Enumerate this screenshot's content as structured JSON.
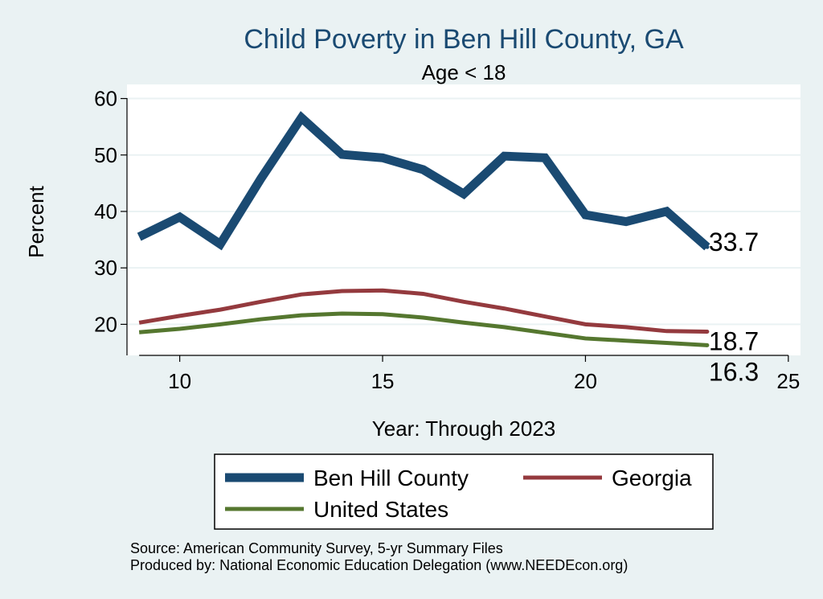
{
  "chart_data": {
    "type": "line",
    "title": "Child Poverty in Ben Hill County, GA",
    "subtitle": "Age < 18",
    "xlabel": "Year: Through 2023",
    "ylabel": "Percent",
    "xlim": [
      8.7,
      25.3
    ],
    "ylim": [
      14.5,
      62.5
    ],
    "xticks": [
      10,
      15,
      20,
      25
    ],
    "yticks": [
      20,
      30,
      40,
      50,
      60
    ],
    "grid": true,
    "legend_position": "bottom",
    "x": [
      9,
      10,
      11,
      12,
      13,
      14,
      15,
      16,
      17,
      18,
      19,
      20,
      21,
      22,
      23
    ],
    "series": [
      {
        "name": "Ben Hill County",
        "color": "#1a4a72",
        "values": [
          35.5,
          39.0,
          34.2,
          45.8,
          56.6,
          50.1,
          49.5,
          47.4,
          43.1,
          49.8,
          49.5,
          39.4,
          38.2,
          40.0,
          33.7
        ],
        "end_label": "33.7"
      },
      {
        "name": "Georgia",
        "color": "#943a3e",
        "values": [
          20.3,
          21.5,
          22.6,
          24.0,
          25.3,
          25.9,
          26.0,
          25.4,
          24.0,
          22.8,
          21.4,
          20.0,
          19.5,
          18.8,
          18.7
        ],
        "end_label": "18.7"
      },
      {
        "name": "United States",
        "color": "#55772f",
        "values": [
          18.6,
          19.2,
          20.0,
          20.9,
          21.6,
          21.9,
          21.8,
          21.2,
          20.3,
          19.5,
          18.5,
          17.5,
          17.1,
          16.7,
          16.3
        ],
        "end_label": "16.3"
      }
    ],
    "source": "Source: American Community Survey, 5-yr Summary Files",
    "produced_by": "Produced by: National Economic Education Delegation (www.NEEDEcon.org)"
  }
}
